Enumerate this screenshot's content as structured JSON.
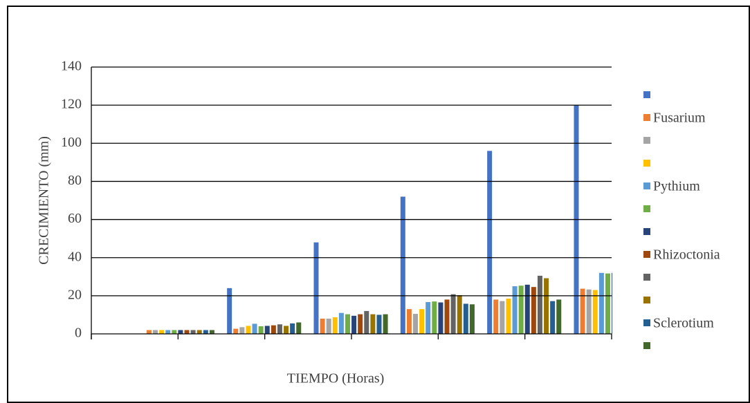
{
  "chart_data": {
    "type": "bar",
    "x_label": "TIEMPO (Horas)",
    "y_label": "CRECIMIENTO (mm)",
    "categories": [
      null,
      null,
      null,
      null,
      null,
      null
    ],
    "series": [
      {
        "name": null,
        "color": "#4472c4",
        "values": [
          0,
          24,
          48,
          72,
          96,
          120
        ]
      },
      {
        "name": "Fusarium",
        "color": "#ed7d31",
        "values": [
          2,
          2.7,
          8,
          13,
          18,
          23.7
        ]
      },
      {
        "name": null,
        "color": "#a5a5a5",
        "values": [
          2,
          3.5,
          8,
          10.5,
          17.2,
          23.3
        ]
      },
      {
        "name": null,
        "color": "#ffc000",
        "values": [
          2,
          4.2,
          8.7,
          13,
          18.5,
          23
        ]
      },
      {
        "name": "Pythium",
        "color": "#5b9bd5",
        "values": [
          2,
          5.3,
          11,
          16.7,
          25,
          32
        ]
      },
      {
        "name": null,
        "color": "#70ad47",
        "values": [
          2,
          4,
          10.3,
          17,
          25.3,
          31.7
        ]
      },
      {
        "name": null,
        "color": "#264478",
        "values": [
          2,
          4.2,
          9.5,
          16.5,
          25.8,
          32
        ]
      },
      {
        "name": "Rhizoctonia",
        "color": "#9e480e",
        "values": [
          2,
          4.5,
          10.3,
          18,
          24.6,
          null
        ]
      },
      {
        "name": null,
        "color": "#636363",
        "values": [
          2,
          5,
          12,
          20.8,
          30.5,
          null
        ]
      },
      {
        "name": null,
        "color": "#997300",
        "values": [
          2,
          4.2,
          10.3,
          20.3,
          29.2,
          null
        ]
      },
      {
        "name": "Sclerotium",
        "color": "#255e91",
        "values": [
          2,
          5.5,
          10,
          15.8,
          17.2,
          null
        ]
      },
      {
        "name": null,
        "color": "#43682b",
        "values": [
          2,
          6,
          10.3,
          15.5,
          18,
          null
        ]
      }
    ],
    "ylim": [
      0,
      140
    ],
    "yticks": [
      0,
      20,
      40,
      60,
      80,
      100,
      120,
      140
    ],
    "grid": true
  }
}
